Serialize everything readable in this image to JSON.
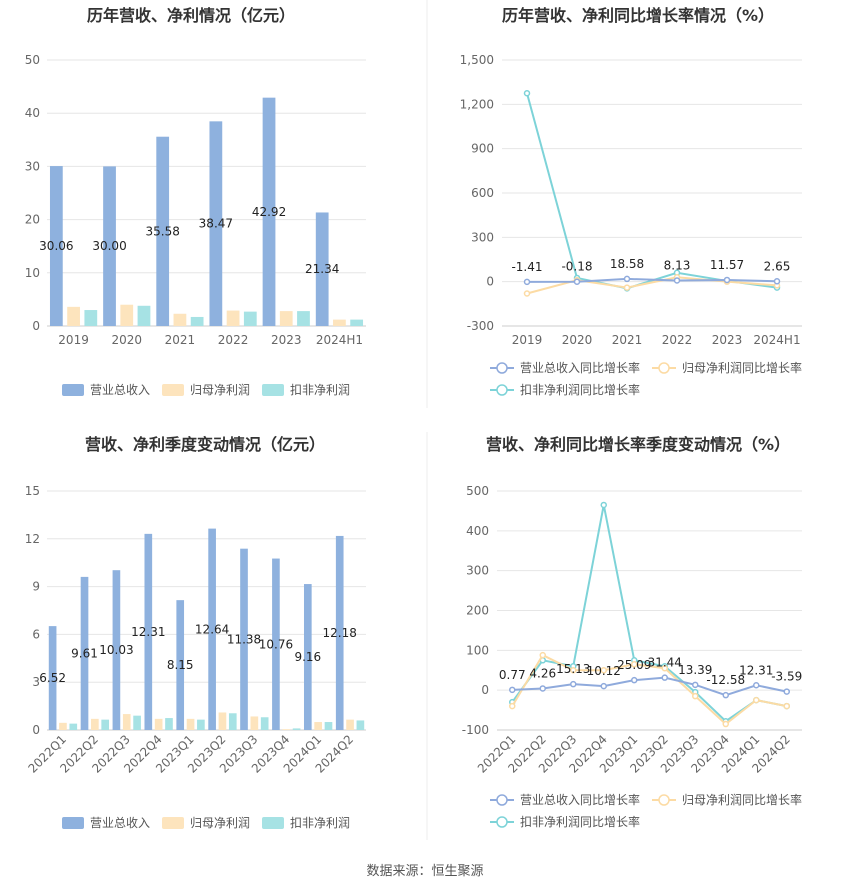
{
  "footer": {
    "source": "数据来源：恒生聚源"
  },
  "colors": {
    "revenue": "#8eb1de",
    "parent_profit": "#fde4bd",
    "deducted_profit": "#a6e2e4",
    "revenue_line": "#8faadc",
    "parent_line": "#fcdba4",
    "deducted_line": "#7dd3d8",
    "grid": "#e6e6e6",
    "axis_text": "#666666",
    "title": "#333333"
  },
  "chart_data": [
    {
      "id": "annual-amount",
      "type": "bar",
      "title": "历年营收、净利情况（亿元）",
      "categories": [
        "2019",
        "2020",
        "2021",
        "2022",
        "2023",
        "2024H1"
      ],
      "ylim": [
        0,
        50
      ],
      "yticks": [
        "0",
        "10",
        "20",
        "30",
        "40",
        "50"
      ],
      "grid": true,
      "legend_position": "bottom",
      "series": [
        {
          "name": "营业总收入",
          "values": [
            30.06,
            30.0,
            35.58,
            38.47,
            42.92,
            21.34
          ],
          "labels": [
            "30.06",
            "30.00",
            "35.58",
            "38.47",
            "42.92",
            "21.34"
          ],
          "labeled": true
        },
        {
          "name": "归母净利润",
          "values": [
            3.6,
            4.0,
            2.3,
            2.9,
            2.8,
            1.2
          ],
          "labeled": false
        },
        {
          "name": "扣非净利润",
          "values": [
            3.0,
            3.8,
            1.7,
            2.7,
            2.8,
            1.2
          ],
          "labeled": false
        }
      ]
    },
    {
      "id": "annual-growth",
      "type": "line",
      "title": "历年营收、净利同比增长率情况（%）",
      "categories": [
        "2019",
        "2020",
        "2021",
        "2022",
        "2023",
        "2024H1"
      ],
      "ylim": [
        -300,
        1500
      ],
      "yticks": [
        "-300",
        "0",
        "300",
        "600",
        "900",
        "1,200",
        "1,500"
      ],
      "grid": true,
      "legend_position": "bottom",
      "series": [
        {
          "name": "营业总收入同比增长率",
          "values": [
            -1.41,
            -0.18,
            18.58,
            8.13,
            11.57,
            2.65
          ],
          "labels": [
            "-1.41",
            "-0.18",
            "18.58",
            "8.13",
            "11.57",
            "2.65"
          ],
          "labeled": true
        },
        {
          "name": "归母净利润同比增长率",
          "values": [
            -80,
            10,
            -40,
            30,
            0,
            -25
          ],
          "labeled": false
        },
        {
          "name": "扣非净利润同比增长率",
          "values": [
            1275,
            25,
            -45,
            60,
            5,
            -40
          ],
          "labeled": false
        }
      ]
    },
    {
      "id": "quarterly-amount",
      "type": "bar",
      "title": "营收、净利季度变动情况（亿元）",
      "categories": [
        "2022Q1",
        "2022Q2",
        "2022Q3",
        "2022Q4",
        "2023Q1",
        "2023Q2",
        "2023Q3",
        "2023Q4",
        "2024Q1",
        "2024Q2"
      ],
      "ylim": [
        0,
        15
      ],
      "yticks": [
        "0",
        "3",
        "6",
        "9",
        "12",
        "15"
      ],
      "grid": true,
      "legend_position": "bottom",
      "series": [
        {
          "name": "营业总收入",
          "values": [
            6.52,
            9.61,
            10.03,
            12.31,
            8.15,
            12.64,
            11.38,
            10.76,
            9.16,
            12.18
          ],
          "labels": [
            "6.52",
            "9.61",
            "10.03",
            "12.31",
            "8.15",
            "12.64",
            "11.38",
            "10.76",
            "9.16",
            "12.18"
          ],
          "labeled": true
        },
        {
          "name": "归母净利润",
          "values": [
            0.45,
            0.7,
            1.0,
            0.7,
            0.7,
            1.1,
            0.85,
            0.05,
            0.5,
            0.65
          ],
          "labeled": false
        },
        {
          "name": "扣非净利润",
          "values": [
            0.4,
            0.65,
            0.9,
            0.75,
            0.65,
            1.05,
            0.8,
            0.1,
            0.5,
            0.6
          ],
          "labeled": false
        }
      ]
    },
    {
      "id": "quarterly-growth",
      "type": "line",
      "title": "营收、净利同比增长率季度变动情况（%）",
      "categories": [
        "2022Q1",
        "2022Q2",
        "2022Q3",
        "2022Q4",
        "2023Q1",
        "2023Q2",
        "2023Q3",
        "2023Q4",
        "2024Q1",
        "2024Q2"
      ],
      "ylim": [
        -100,
        500
      ],
      "yticks": [
        "-100",
        "0",
        "100",
        "200",
        "300",
        "400",
        "500"
      ],
      "grid": true,
      "legend_position": "bottom",
      "series": [
        {
          "name": "营业总收入同比增长率",
          "values": [
            0.77,
            4.26,
            15.13,
            10.12,
            25.09,
            31.44,
            13.39,
            -12.58,
            12.31,
            -3.59
          ],
          "labels": [
            "0.77",
            "4.26",
            "15.13",
            "10.12",
            "25.09",
            "31.44",
            "13.39",
            "-12.58",
            "12.31",
            "-3.59"
          ],
          "labeled": true
        },
        {
          "name": "归母净利润同比增长率",
          "values": [
            -40,
            88,
            50,
            50,
            65,
            55,
            -15,
            -85,
            -25,
            -40
          ],
          "labeled": false
        },
        {
          "name": "扣非净利润同比增长率",
          "values": [
            -30,
            75,
            60,
            465,
            75,
            60,
            -5,
            -78,
            -25,
            -40
          ],
          "labeled": false
        }
      ]
    }
  ]
}
